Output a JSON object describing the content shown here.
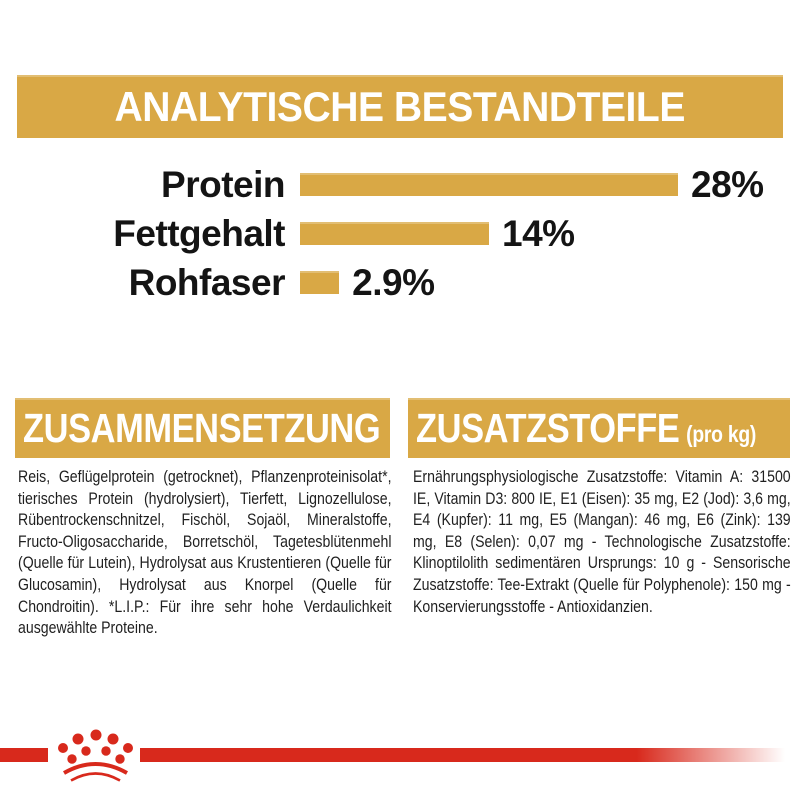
{
  "colors": {
    "gold": "#D9A845",
    "red": "#D8291C",
    "text": "#1A1A1A",
    "header_text": "#FFFFFF",
    "background": "#FFFFFF"
  },
  "title": "ANALYTISCHE BESTANDTEILE",
  "chart_data": {
    "type": "bar",
    "orientation": "horizontal",
    "title": "ANALYTISCHE BESTANDTEILE",
    "categories": [
      "Protein",
      "Fettgehalt",
      "Rohfaser"
    ],
    "values": [
      28,
      14,
      2.9
    ],
    "value_labels": [
      "28%",
      "14%",
      "2.9%"
    ],
    "unit": "%",
    "bar_color": "#D9A845",
    "xlim": [
      0,
      30
    ],
    "grid": false,
    "legend": false
  },
  "composition": {
    "header": "ZUSAMMENSETZUNG",
    "text": "Reis, Geflügelprotein (getrocknet), Pflanzenproteini­solat*, tierisches Protein (hydrolysiert), Tierfett, Lignozellulose, Rübentrockenschnitzel, Fischöl, Sojaöl, Mineralstoffe, Fructo-Oligosaccharide, Borretschöl, Tagetesblütenmehl (Quelle für Lutein), Hydrolysat aus Krustentieren (Quelle für Glucosamin), Hydrolysat aus Knorpel (Quelle für Chondroitin). *L.I.P.: Für ihre sehr hohe Verdaulichkeit ausgewählte Proteine."
  },
  "additives": {
    "header": "ZUSATZSTOFFE",
    "header_suffix": "(pro kg)",
    "text": "Ernährungsphysiologische Zusatzstoffe: Vitamin A: 31500 IE, Vitamin D3: 800 IE, E1 (Eisen): 35 mg, E2 (Jod): 3,6 mg, E4 (Kupfer): 11 mg, E5 (Mangan): 46 mg, E6 (Zink): 139 mg, E8 (Selen): 0,07 mg - Technologische Zusatzstoffe: Klinoptilolith sedimentären Ursprungs: 10 g - Sensorische Zusatzstoffe: Tee-Extrakt (Quelle für Polyphenole): 150 mg - Konservierungsstoffe - Antioxidanzien."
  },
  "footer": {
    "logo": "royal-canin-crown",
    "stripe_color": "#D8291C"
  }
}
